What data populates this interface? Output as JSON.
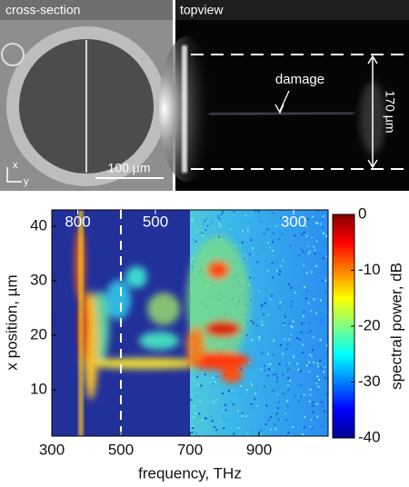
{
  "panels": {
    "cross_section": {
      "label": "cross-section",
      "scale_bar": "100 µm",
      "axis_x": "x",
      "axis_y": "y"
    },
    "topview": {
      "label": "topview",
      "annotation": "damage",
      "dimension": "170 µm"
    }
  },
  "chart_data": {
    "type": "heatmap",
    "xlabel": "frequency, THz",
    "ylabel": "x position, µm",
    "xlim": [
      300,
      1100
    ],
    "xticks": [
      300,
      500,
      700,
      900
    ],
    "ylim": [
      1.5,
      43
    ],
    "yticks": [
      10,
      20,
      30,
      40
    ],
    "top_ticks": [
      {
        "value": 375,
        "label": "800"
      },
      {
        "value": 600,
        "label": "500"
      },
      {
        "value": 1000,
        "label": "300"
      }
    ],
    "marker_line": 500,
    "colorbar": {
      "label": "spectral power, dB",
      "lim": [
        -40,
        0
      ],
      "ticks": [
        0,
        -10,
        -20,
        -30,
        -40
      ],
      "colors": [
        "#00008f",
        "#0000ff",
        "#0080ff",
        "#00ffff",
        "#80ff80",
        "#ffff00",
        "#ff8000",
        "#ff0000",
        "#800000"
      ]
    }
  }
}
